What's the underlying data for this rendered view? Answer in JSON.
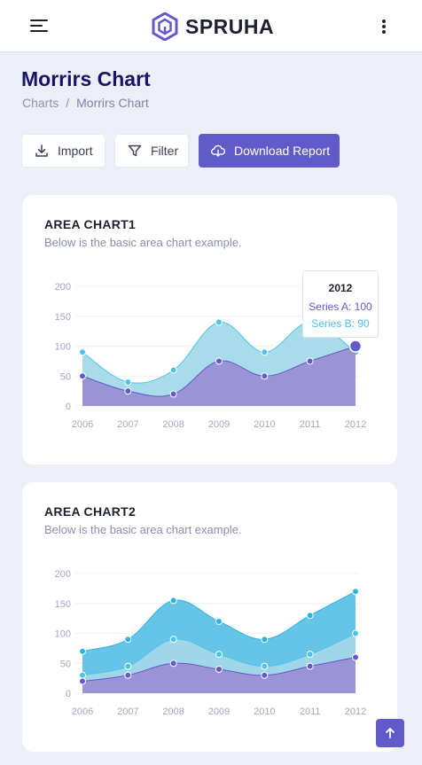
{
  "header": {
    "brand": "SPRUHA",
    "menu_icon": "hamburger-menu-icon",
    "more_icon": "vertical-dots-icon"
  },
  "page": {
    "title": "Morrirs Chart",
    "breadcrumb": [
      "Charts",
      "Morrirs Chart"
    ],
    "separator": "/"
  },
  "toolbar": {
    "import_label": "Import",
    "filter_label": "Filter",
    "download_label": "Download Report"
  },
  "colors": {
    "primary": "#6259ca",
    "series_a": "#6259ca",
    "series_b": "#4ec2e8",
    "series_c": "#3cb4e5"
  },
  "chart_data": [
    {
      "type": "area",
      "title": "AREA CHART1",
      "subtitle": "Below is the basic area chart example.",
      "x": [
        "2006",
        "2007",
        "2008",
        "2009",
        "2010",
        "2011",
        "2012"
      ],
      "yticks": [
        0,
        50,
        100,
        150,
        200
      ],
      "ylim": [
        0,
        200
      ],
      "series": [
        {
          "name": "Series A",
          "values": [
            50,
            25,
            20,
            75,
            50,
            75,
            100
          ]
        },
        {
          "name": "Series B",
          "values": [
            90,
            40,
            60,
            140,
            90,
            140,
            90
          ]
        }
      ],
      "tooltip": {
        "title": "2012",
        "line_a": "Series A: 100",
        "line_b": "Series B: 90"
      }
    },
    {
      "type": "area",
      "title": "AREA CHART2",
      "subtitle": "Below is the basic area chart example.",
      "x": [
        "2006",
        "2007",
        "2008",
        "2009",
        "2010",
        "2011",
        "2012"
      ],
      "yticks": [
        0,
        50,
        100,
        150,
        200
      ],
      "ylim": [
        0,
        200
      ],
      "series": [
        {
          "values": [
            20,
            30,
            50,
            40,
            30,
            45,
            60
          ]
        },
        {
          "values": [
            30,
            45,
            90,
            65,
            45,
            65,
            100
          ]
        },
        {
          "values": [
            70,
            90,
            155,
            120,
            90,
            130,
            170
          ]
        }
      ]
    }
  ]
}
